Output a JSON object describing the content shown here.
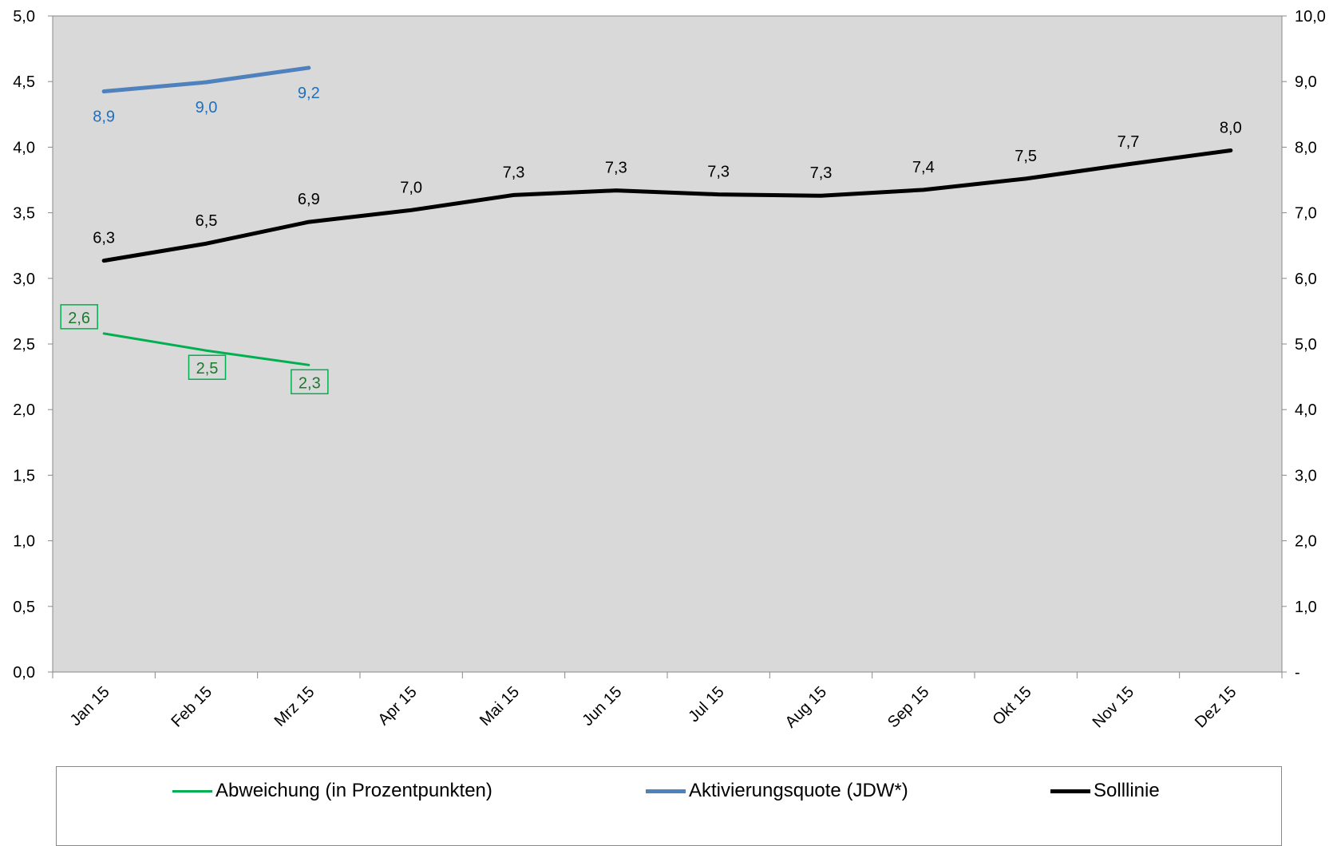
{
  "chart_data": {
    "type": "line",
    "categories": [
      "Jan 15",
      "Feb 15",
      "Mrz 15",
      "Apr 15",
      "Mai 15",
      "Jun 15",
      "Jul 15",
      "Aug 15",
      "Sep 15",
      "Okt 15",
      "Nov 15",
      "Dez 15"
    ],
    "y_left": {
      "range": [
        0,
        5
      ],
      "ticks": [
        "0,0",
        "0,5",
        "1,0",
        "1,5",
        "2,0",
        "2,5",
        "3,0",
        "3,5",
        "4,0",
        "4,5",
        "5,0"
      ]
    },
    "y_right": {
      "range": [
        0,
        10
      ],
      "ticks": [
        "-",
        "1,0",
        "2,0",
        "3,0",
        "4,0",
        "5,0",
        "6,0",
        "7,0",
        "8,0",
        "9,0",
        "10,0"
      ]
    },
    "grid": false,
    "legend_placement": "bottom",
    "series": [
      {
        "name": "Abweichung (in Prozentpunkten)",
        "axis": "left",
        "color": "#00b050",
        "values": [
          2.58,
          2.45,
          2.34,
          null,
          null,
          null,
          null,
          null,
          null,
          null,
          null,
          null
        ],
        "labels": [
          "2,6",
          "2,5",
          "2,3",
          "",
          "",
          "",
          "",
          "",
          "",
          "",
          "",
          ""
        ],
        "label_style": "boxed"
      },
      {
        "name": "Aktivierungsquote (JDW*)",
        "axis": "right",
        "color": "#4f81bd",
        "values": [
          8.85,
          8.99,
          9.21,
          null,
          null,
          null,
          null,
          null,
          null,
          null,
          null,
          null
        ],
        "labels": [
          "8,9",
          "9,0",
          "9,2",
          "",
          "",
          "",
          "",
          "",
          "",
          "",
          "",
          ""
        ],
        "label_style": "below"
      },
      {
        "name": "Solllinie",
        "axis": "right",
        "color": "#000000",
        "values": [
          6.27,
          6.53,
          6.86,
          7.04,
          7.27,
          7.34,
          7.28,
          7.26,
          7.35,
          7.52,
          7.74,
          7.95
        ],
        "labels": [
          "6,3",
          "6,5",
          "6,9",
          "7,0",
          "7,3",
          "7,3",
          "7,3",
          "7,3",
          "7,4",
          "7,5",
          "7,7",
          "8,0"
        ],
        "label_style": "above"
      }
    ]
  },
  "legend": {
    "items": [
      {
        "label": "Abweichung (in Prozentpunkten)",
        "color": "#00b050",
        "thickness": 3
      },
      {
        "label": "Aktivierungsquote (JDW*)",
        "color": "#4f81bd",
        "thickness": 5
      },
      {
        "label": "Solllinie",
        "color": "#000000",
        "thickness": 5
      }
    ]
  },
  "colors": {
    "plot_background": "#d9d9d9"
  }
}
